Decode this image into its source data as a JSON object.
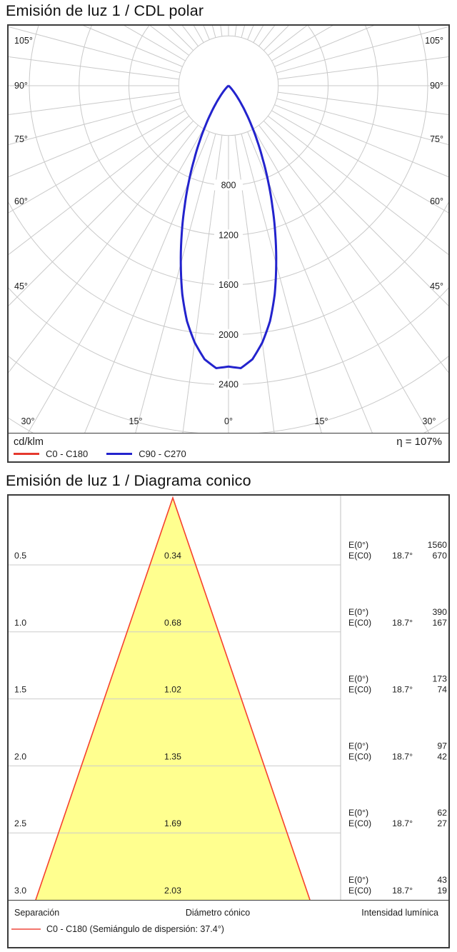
{
  "polar_section": {
    "title": "Emisión de luz 1 / CDL polar",
    "unit_label": "cd/klm",
    "efficiency_label": "η = 107%",
    "legend": [
      {
        "label": "C0 - C180",
        "color": "#e5392e"
      },
      {
        "label": "C90 - C270",
        "color": "#2323cd"
      }
    ],
    "chart_data": {
      "type": "polar-intensity-curve",
      "unit": "cd/klm",
      "efficiency_eta_pct": 107,
      "ring_step_cd_klm": 400,
      "ring_labels": [
        "800",
        "1200",
        "1600",
        "2000",
        "2400"
      ],
      "angle_grid_step_deg": 7.5,
      "angle_labels_side": [
        "105°",
        "90°",
        "75°",
        "60°",
        "45°"
      ],
      "angle_labels_bottom": [
        "30°",
        "15°",
        "0°",
        "15°",
        "30°"
      ],
      "symmetric_about_0deg": true,
      "series": [
        {
          "name": "C0 - C180",
          "color": "#e5392e",
          "angles_deg": [
            0,
            2.5,
            5,
            7.5,
            10,
            12.5,
            15,
            17.5,
            20,
            22.5,
            25,
            27.5,
            30,
            32.5,
            35,
            37.5,
            40,
            42.5,
            45,
            47.5,
            50,
            55,
            60,
            65,
            90
          ],
          "values_cd_klm": [
            2255,
            2270,
            2205,
            2080,
            1920,
            1715,
            1480,
            1250,
            1030,
            832,
            650,
            500,
            370,
            265,
            182,
            120,
            76,
            46,
            27,
            15,
            8,
            2,
            0.5,
            0,
            0
          ]
        },
        {
          "name": "C90 - C270",
          "color": "#2323cd",
          "angles_deg": [
            0,
            2.5,
            5,
            7.5,
            10,
            12.5,
            15,
            17.5,
            20,
            22.5,
            25,
            27.5,
            30,
            32.5,
            35,
            37.5,
            40,
            42.5,
            45,
            47.5,
            50,
            55,
            60,
            65,
            90
          ],
          "values_cd_klm": [
            2255,
            2270,
            2205,
            2080,
            1920,
            1715,
            1480,
            1250,
            1030,
            832,
            650,
            500,
            370,
            265,
            182,
            120,
            76,
            46,
            27,
            15,
            8,
            2,
            0.5,
            0,
            0
          ]
        }
      ]
    }
  },
  "cone_section": {
    "title": "Emisión de luz 1 / Diagrama conico",
    "footer_labels": {
      "separation": "Separación",
      "diameter": "Diámetro cónico",
      "intensity": "Intensidad lumínica"
    },
    "legend": {
      "label": "C0 - C180 (Semiángulo de dispersión: 37.4°)",
      "color": "#f3766d"
    },
    "chart_data": {
      "type": "cone-diagram",
      "semi_angle_deg": 18.7,
      "beam_angle_deg": 37.4,
      "cone_fill": "#ffff8f",
      "cone_edge_color": "#f6402e",
      "col_labels": {
        "e0": "E(0°)",
        "ec0": "E(C0)",
        "angle": "18.7°"
      },
      "rows": [
        {
          "separation": "0.5",
          "diameter": "0.34",
          "e0": "1560",
          "ec0": "670"
        },
        {
          "separation": "1.0",
          "diameter": "0.68",
          "e0": "390",
          "ec0": "167"
        },
        {
          "separation": "1.5",
          "diameter": "1.02",
          "e0": "173",
          "ec0": "74"
        },
        {
          "separation": "2.0",
          "diameter": "1.35",
          "e0": "97",
          "ec0": "42"
        },
        {
          "separation": "2.5",
          "diameter": "1.69",
          "e0": "62",
          "ec0": "27"
        },
        {
          "separation": "3.0",
          "diameter": "2.03",
          "e0": "43",
          "ec0": "19"
        }
      ]
    }
  }
}
